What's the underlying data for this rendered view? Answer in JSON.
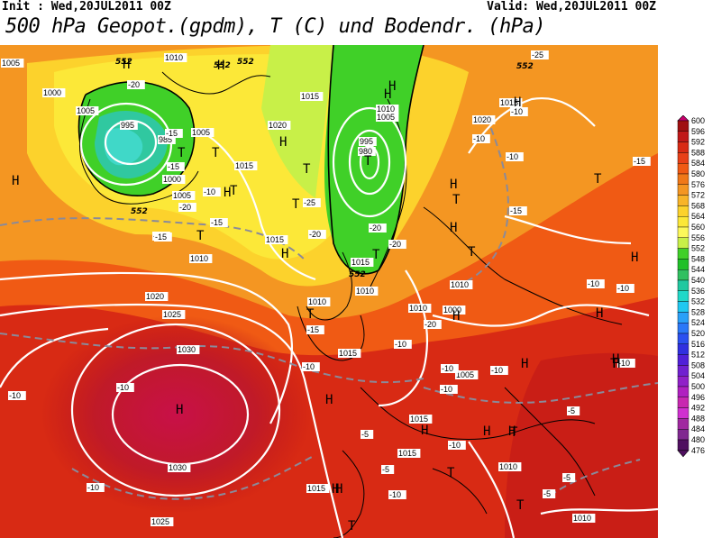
{
  "header": {
    "init_text": "Init : Wed,20JUL2011 00Z",
    "valid_text": "Valid: Wed,20JUL2011 00Z",
    "title": "500 hPa Geopot.(gpdm), T (C) und Bodendr. (hPa)"
  },
  "legend": {
    "levels": [
      "600",
      "596",
      "592",
      "588",
      "584",
      "580",
      "576",
      "572",
      "568",
      "564",
      "560",
      "556",
      "552",
      "548",
      "544",
      "540",
      "536",
      "532",
      "528",
      "524",
      "520",
      "516",
      "512",
      "508",
      "504",
      "500",
      "496",
      "492",
      "488",
      "484",
      "480",
      "476"
    ],
    "colors": [
      "#c8006e",
      "#a01010",
      "#c01818",
      "#d82a14",
      "#e84018",
      "#f05a14",
      "#f07818",
      "#f49622",
      "#f8b428",
      "#fcd22c",
      "#fce838",
      "#fcf85a",
      "#c8f048",
      "#40d028",
      "#20c028",
      "#30c060",
      "#20c8a0",
      "#20d8c8",
      "#20c8f0",
      "#2aa0f8",
      "#2a78f8",
      "#2a50f0",
      "#3030e0",
      "#5020d8",
      "#7020d0",
      "#9020c8",
      "#b020c0",
      "#c828b0",
      "#d030d0",
      "#a028a0",
      "#802890",
      "#501060"
    ]
  },
  "map": {
    "pressure_labels": [
      "1005",
      "1010",
      "1000",
      "1005",
      "995",
      "985",
      "1005",
      "1000",
      "1005",
      "1010",
      "1015",
      "1020",
      "1015",
      "995",
      "980",
      "1010",
      "1005",
      "1020",
      "1010",
      "1015",
      "1015",
      "1010",
      "1010",
      "1020",
      "1025",
      "1030",
      "1030",
      "1015",
      "1010",
      "1000",
      "1005",
      "1015",
      "1015",
      "1010",
      "1015",
      "1010",
      "1025",
      "1015"
    ],
    "temp_labels": [
      "-20",
      "-15",
      "-15",
      "-10",
      "-20",
      "-15",
      "-25",
      "-20",
      "-20",
      "-15",
      "-20",
      "-15",
      "-10",
      "-10",
      "-15",
      "-10",
      "-10",
      "-10",
      "-10",
      "-10",
      "-15",
      "-15",
      "-10",
      "-10",
      "-10",
      "-5",
      "-10",
      "-10",
      "-5",
      "-5",
      "-5",
      "-10",
      "-5",
      "-10",
      "-10",
      "-10",
      "-20",
      "-25"
    ],
    "geopot_labels": [
      "552",
      "552",
      "552",
      "552",
      "552",
      "552"
    ],
    "high_symbols": [
      "H",
      "H",
      "H",
      "H",
      "H",
      "H",
      "H",
      "H",
      "H",
      "H",
      "H",
      "H",
      "H",
      "H",
      "H",
      "H",
      "H",
      "H",
      "H",
      "H",
      "H",
      "H",
      "H",
      "H"
    ],
    "low_symbols": [
      "T",
      "T",
      "T",
      "T",
      "T",
      "T",
      "T",
      "T",
      "T",
      "T",
      "T",
      "T",
      "T",
      "T",
      "T",
      "T",
      "T"
    ]
  }
}
